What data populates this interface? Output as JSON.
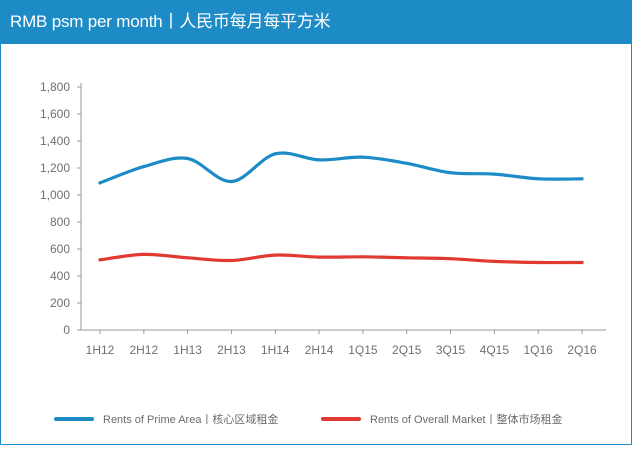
{
  "header": {
    "title": "RMB psm per month丨人民币每月每平方米"
  },
  "colors": {
    "header_bg": "#1d8bc6",
    "prime": "#1d8bc6",
    "overall": "#e03a31",
    "axis": "#9a9a9a",
    "tick_text": "#707070"
  },
  "chart_data": {
    "type": "line",
    "title": "RMB psm per month丨人民币每月每平方米",
    "categories": [
      "1H12",
      "2H12",
      "1H13",
      "2H13",
      "1H14",
      "2H14",
      "1Q15",
      "2Q15",
      "3Q15",
      "4Q15",
      "1Q16",
      "2Q16"
    ],
    "yticks": [
      "0",
      "200",
      "400",
      "600",
      "800",
      "1,000",
      "1,200",
      "1,400",
      "1,600",
      "1,800"
    ],
    "ylim": [
      0,
      1800
    ],
    "grid": false,
    "legend_position": "bottom",
    "series": [
      {
        "name": "Rents of Prime Area丨核心区域租金",
        "color": "#1d8bc6",
        "values": [
          1090,
          1210,
          1270,
          1100,
          1305,
          1260,
          1280,
          1235,
          1165,
          1155,
          1120,
          1120
        ]
      },
      {
        "name": "Rents of Overall Market丨整体市场租金",
        "color": "#e03a31",
        "values": [
          520,
          560,
          535,
          515,
          555,
          540,
          542,
          535,
          528,
          508,
          500,
          500
        ]
      }
    ]
  }
}
